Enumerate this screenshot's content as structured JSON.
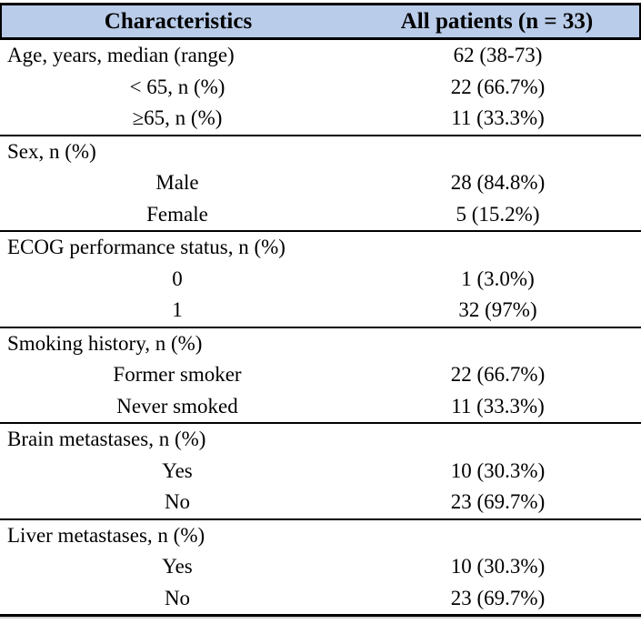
{
  "table": {
    "columns": [
      "Characteristics",
      "All patients (n = 33)"
    ],
    "sections": [
      {
        "rows": [
          {
            "label": "Age, years, median (range)",
            "value": "62 (38-73)",
            "label_align": "left"
          },
          {
            "label": "< 65, n (%)",
            "value": "22 (66.7%)",
            "label_align": "center"
          },
          {
            "label": "≥65, n (%)",
            "value": "11 (33.3%)",
            "label_align": "center"
          }
        ]
      },
      {
        "rows": [
          {
            "label": "Sex, n (%)",
            "value": "",
            "label_align": "left"
          },
          {
            "label": "Male",
            "value": "28 (84.8%)",
            "label_align": "center"
          },
          {
            "label": "Female",
            "value": "5 (15.2%)",
            "label_align": "center"
          }
        ]
      },
      {
        "rows": [
          {
            "label": "ECOG performance status, n (%)",
            "value": "",
            "label_align": "left"
          },
          {
            "label": "0",
            "value": "1 (3.0%)",
            "label_align": "center"
          },
          {
            "label": "1",
            "value": "32 (97%)",
            "label_align": "center"
          }
        ]
      },
      {
        "rows": [
          {
            "label": "Smoking history, n (%)",
            "value": "",
            "label_align": "left"
          },
          {
            "label": "Former smoker",
            "value": "22 (66.7%)",
            "label_align": "center"
          },
          {
            "label": "Never smoked",
            "value": "11 (33.3%)",
            "label_align": "center"
          }
        ]
      },
      {
        "rows": [
          {
            "label": "Brain metastases, n (%)",
            "value": "",
            "label_align": "left"
          },
          {
            "label": "Yes",
            "value": "10 (30.3%)",
            "label_align": "center"
          },
          {
            "label": "No",
            "value": "23 (69.7%)",
            "label_align": "center"
          }
        ]
      },
      {
        "rows": [
          {
            "label": "Liver metastases, n (%)",
            "value": "",
            "label_align": "left"
          },
          {
            "label": "Yes",
            "value": "10 (30.3%)",
            "label_align": "center"
          },
          {
            "label": "No",
            "value": "23 (69.7%)",
            "label_align": "center"
          }
        ]
      }
    ]
  },
  "chart_data": {
    "type": "table",
    "title": "",
    "headers": [
      "Characteristics",
      "All patients (n = 33)"
    ],
    "rows": [
      [
        "Age, years, median (range)",
        "62 (38-73)"
      ],
      [
        "< 65, n (%)",
        "22 (66.7%)"
      ],
      [
        "≥65, n (%)",
        "11 (33.3%)"
      ],
      [
        "Sex, n (%)",
        ""
      ],
      [
        "Male",
        "28 (84.8%)"
      ],
      [
        "Female",
        "5 (15.2%)"
      ],
      [
        "ECOG performance status, n (%)",
        ""
      ],
      [
        "0",
        "1 (3.0%)"
      ],
      [
        "1",
        "32 (97%)"
      ],
      [
        "Smoking history, n (%)",
        ""
      ],
      [
        "Former smoker",
        "22 (66.7%)"
      ],
      [
        "Never smoked",
        "11 (33.3%)"
      ],
      [
        "Brain metastases, n (%)",
        ""
      ],
      [
        "Yes",
        "10 (30.3%)"
      ],
      [
        "No",
        "23 (69.7%)"
      ],
      [
        "Liver metastases, n (%)",
        ""
      ],
      [
        "Yes",
        "10 (30.3%)"
      ],
      [
        "No",
        "23 (69.7%)"
      ]
    ]
  },
  "colors": {
    "header_bg": "#b9cce9",
    "border": "#000000",
    "text": "#000000",
    "page_bg": "#ffffff"
  }
}
